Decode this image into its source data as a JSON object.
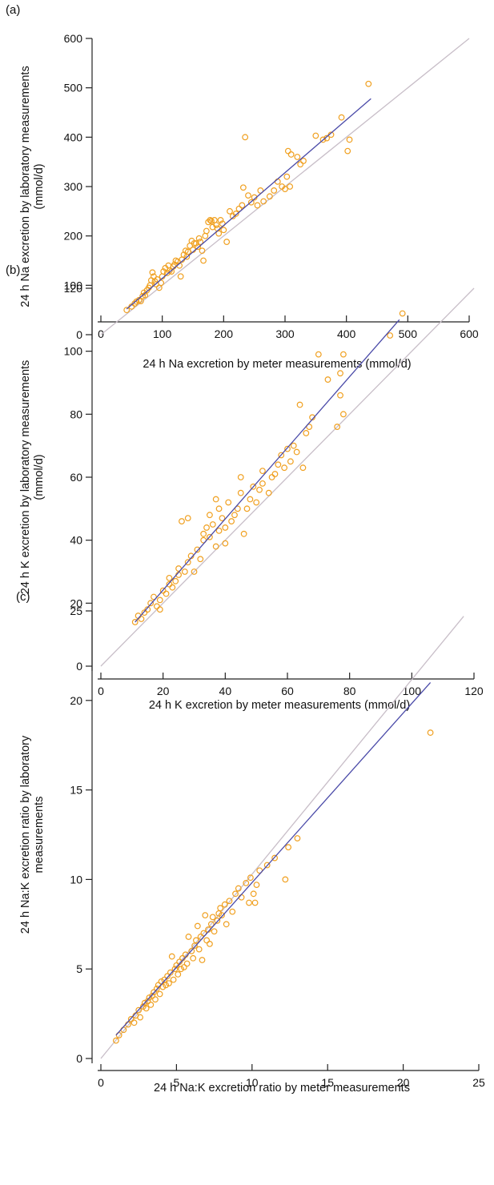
{
  "chart_data": [
    {
      "type": "scatter",
      "panel_label": "(a)",
      "xlabel": "24 h Na excretion by meter measurements (mmol/d)",
      "ylabel": [
        "24 h Na excretion by laboratory measurements",
        "(mmol/d)"
      ],
      "xlim": [
        0,
        600
      ],
      "ylim": [
        0,
        600
      ],
      "xticks": [
        0,
        100,
        200,
        300,
        400,
        500,
        600
      ],
      "yticks": [
        0,
        100,
        200,
        300,
        400,
        500,
        600
      ],
      "grid": false,
      "colors": {
        "points": "#f0a020",
        "fit": "#4a4aa8",
        "identity": "#c8bec8"
      },
      "identity_line": {
        "x": [
          0,
          600
        ],
        "y": [
          0,
          600
        ]
      },
      "fit_line": {
        "x": [
          42,
          440
        ],
        "y": [
          52,
          478
        ]
      },
      "points": [
        [
          42,
          50
        ],
        [
          50,
          57
        ],
        [
          55,
          63
        ],
        [
          58,
          67
        ],
        [
          62,
          70
        ],
        [
          65,
          68
        ],
        [
          68,
          78
        ],
        [
          70,
          85
        ],
        [
          72,
          80
        ],
        [
          75,
          90
        ],
        [
          78,
          95
        ],
        [
          80,
          100
        ],
        [
          82,
          110
        ],
        [
          84,
          126
        ],
        [
          86,
          118
        ],
        [
          88,
          108
        ],
        [
          90,
          102
        ],
        [
          92,
          112
        ],
        [
          95,
          95
        ],
        [
          98,
          105
        ],
        [
          100,
          118
        ],
        [
          102,
          128
        ],
        [
          105,
          135
        ],
        [
          108,
          125
        ],
        [
          110,
          140
        ],
        [
          112,
          130
        ],
        [
          115,
          128
        ],
        [
          118,
          138
        ],
        [
          120,
          142
        ],
        [
          122,
          150
        ],
        [
          125,
          148
        ],
        [
          128,
          140
        ],
        [
          130,
          118
        ],
        [
          132,
          152
        ],
        [
          135,
          162
        ],
        [
          138,
          170
        ],
        [
          140,
          158
        ],
        [
          142,
          168
        ],
        [
          145,
          180
        ],
        [
          148,
          190
        ],
        [
          150,
          172
        ],
        [
          152,
          185
        ],
        [
          155,
          185
        ],
        [
          158,
          178
        ],
        [
          160,
          195
        ],
        [
          162,
          188
        ],
        [
          165,
          170
        ],
        [
          167,
          150
        ],
        [
          170,
          200
        ],
        [
          172,
          210
        ],
        [
          175,
          228
        ],
        [
          178,
          232
        ],
        [
          180,
          230
        ],
        [
          182,
          218
        ],
        [
          185,
          232
        ],
        [
          188,
          222
        ],
        [
          190,
          215
        ],
        [
          192,
          205
        ],
        [
          195,
          232
        ],
        [
          198,
          225
        ],
        [
          200,
          212
        ],
        [
          205,
          188
        ],
        [
          210,
          250
        ],
        [
          215,
          240
        ],
        [
          220,
          245
        ],
        [
          225,
          255
        ],
        [
          230,
          262
        ],
        [
          232,
          298
        ],
        [
          235,
          400
        ],
        [
          240,
          282
        ],
        [
          245,
          268
        ],
        [
          250,
          278
        ],
        [
          255,
          262
        ],
        [
          260,
          292
        ],
        [
          265,
          270
        ],
        [
          275,
          280
        ],
        [
          282,
          292
        ],
        [
          288,
          310
        ],
        [
          295,
          300
        ],
        [
          300,
          295
        ],
        [
          303,
          320
        ],
        [
          305,
          372
        ],
        [
          308,
          300
        ],
        [
          310,
          365
        ],
        [
          320,
          360
        ],
        [
          325,
          345
        ],
        [
          330,
          352
        ],
        [
          350,
          403
        ],
        [
          362,
          395
        ],
        [
          368,
          398
        ],
        [
          375,
          405
        ],
        [
          392,
          440
        ],
        [
          402,
          372
        ],
        [
          405,
          395
        ],
        [
          436,
          508
        ]
      ]
    },
    {
      "type": "scatter",
      "panel_label": "(b)",
      "xlabel": "24 h K excretion by meter measurements (mmol/d)",
      "ylabel": [
        "24 h K excretion by laboratory measurements",
        "(mmol/d)"
      ],
      "xlim": [
        0,
        120
      ],
      "ylim": [
        0,
        120
      ],
      "xticks": [
        0,
        20,
        40,
        60,
        80,
        100,
        120
      ],
      "yticks": [
        0,
        20,
        40,
        60,
        80,
        100,
        120
      ],
      "grid": false,
      "colors": {
        "points": "#f0a020",
        "fit": "#4a4aa8",
        "identity": "#c8bec8"
      },
      "identity_line": {
        "x": [
          0,
          120
        ],
        "y": [
          0,
          120
        ]
      },
      "fit_line": {
        "x": [
          11,
          96
        ],
        "y": [
          14,
          110
        ]
      },
      "points": [
        [
          11,
          14
        ],
        [
          12,
          16
        ],
        [
          13,
          15
        ],
        [
          14,
          17
        ],
        [
          15,
          18
        ],
        [
          16,
          20
        ],
        [
          17,
          22
        ],
        [
          18,
          19
        ],
        [
          19,
          21
        ],
        [
          19,
          18
        ],
        [
          20,
          24
        ],
        [
          21,
          23
        ],
        [
          22,
          26
        ],
        [
          22,
          28
        ],
        [
          23,
          25
        ],
        [
          24,
          27
        ],
        [
          25,
          29
        ],
        [
          25,
          31
        ],
        [
          26,
          46
        ],
        [
          27,
          30
        ],
        [
          28,
          47
        ],
        [
          28,
          33
        ],
        [
          29,
          35
        ],
        [
          30,
          30
        ],
        [
          31,
          37
        ],
        [
          32,
          34
        ],
        [
          33,
          40
        ],
        [
          33,
          42
        ],
        [
          34,
          44
        ],
        [
          35,
          41
        ],
        [
          35,
          48
        ],
        [
          36,
          45
        ],
        [
          37,
          53
        ],
        [
          37,
          38
        ],
        [
          38,
          43
        ],
        [
          38,
          50
        ],
        [
          39,
          47
        ],
        [
          40,
          44
        ],
        [
          40,
          39
        ],
        [
          41,
          52
        ],
        [
          42,
          46
        ],
        [
          43,
          48
        ],
        [
          44,
          50
        ],
        [
          45,
          60
        ],
        [
          45,
          55
        ],
        [
          46,
          42
        ],
        [
          47,
          50
        ],
        [
          48,
          53
        ],
        [
          49,
          57
        ],
        [
          50,
          52
        ],
        [
          51,
          56
        ],
        [
          52,
          58
        ],
        [
          52,
          62
        ],
        [
          54,
          55
        ],
        [
          55,
          60
        ],
        [
          56,
          61
        ],
        [
          57,
          64
        ],
        [
          58,
          67
        ],
        [
          59,
          63
        ],
        [
          60,
          69
        ],
        [
          61,
          65
        ],
        [
          62,
          70
        ],
        [
          63,
          68
        ],
        [
          64,
          83
        ],
        [
          65,
          63
        ],
        [
          66,
          74
        ],
        [
          67,
          76
        ],
        [
          68,
          79
        ],
        [
          70,
          99
        ],
        [
          73,
          91
        ],
        [
          76,
          76
        ],
        [
          77,
          93
        ],
        [
          77,
          86
        ],
        [
          78,
          80
        ],
        [
          78,
          99
        ],
        [
          93,
          105
        ],
        [
          97,
          112
        ]
      ]
    },
    {
      "type": "scatter",
      "panel_label": "(c)",
      "xlabel": "24 h Na:K excretion ratio by meter measurements",
      "ylabel": [
        "24 h Na:K excretion ratio by laboratory",
        "measurements"
      ],
      "xlim": [
        0,
        25
      ],
      "ylim": [
        0,
        25
      ],
      "xticks": [
        0,
        5,
        10,
        15,
        20,
        25
      ],
      "yticks": [
        0,
        5,
        10,
        15,
        20,
        25
      ],
      "grid": false,
      "colors": {
        "points": "#f0a020",
        "fit": "#4a4aa8",
        "identity": "#c8bec8"
      },
      "identity_line": {
        "x": [
          0,
          24
        ],
        "y": [
          0,
          24.7
        ]
      },
      "fit_line": {
        "x": [
          1.0,
          21.8
        ],
        "y": [
          1.3,
          21.0
        ]
      },
      "points": [
        [
          1.0,
          1.0
        ],
        [
          1.2,
          1.3
        ],
        [
          1.5,
          1.6
        ],
        [
          1.8,
          1.9
        ],
        [
          2.0,
          2.2
        ],
        [
          2.2,
          2.0
        ],
        [
          2.3,
          2.4
        ],
        [
          2.5,
          2.7
        ],
        [
          2.6,
          2.3
        ],
        [
          2.8,
          2.9
        ],
        [
          2.9,
          3.1
        ],
        [
          3.0,
          2.8
        ],
        [
          3.1,
          3.2
        ],
        [
          3.2,
          3.4
        ],
        [
          3.3,
          3.0
        ],
        [
          3.4,
          3.5
        ],
        [
          3.5,
          3.7
        ],
        [
          3.6,
          3.3
        ],
        [
          3.7,
          3.9
        ],
        [
          3.8,
          4.1
        ],
        [
          3.9,
          3.6
        ],
        [
          4.0,
          4.3
        ],
        [
          4.1,
          4.0
        ],
        [
          4.2,
          4.4
        ],
        [
          4.3,
          4.1
        ],
        [
          4.4,
          4.6
        ],
        [
          4.5,
          4.2
        ],
        [
          4.6,
          4.8
        ],
        [
          4.7,
          5.7
        ],
        [
          4.8,
          4.4
        ],
        [
          4.9,
          5.0
        ],
        [
          5.0,
          5.2
        ],
        [
          5.1,
          4.7
        ],
        [
          5.2,
          5.4
        ],
        [
          5.3,
          5.0
        ],
        [
          5.4,
          5.6
        ],
        [
          5.5,
          5.1
        ],
        [
          5.6,
          5.8
        ],
        [
          5.7,
          5.3
        ],
        [
          5.8,
          6.8
        ],
        [
          6.0,
          6.0
        ],
        [
          6.1,
          5.6
        ],
        [
          6.2,
          6.3
        ],
        [
          6.3,
          6.6
        ],
        [
          6.4,
          7.4
        ],
        [
          6.5,
          6.1
        ],
        [
          6.6,
          6.8
        ],
        [
          6.7,
          5.5
        ],
        [
          6.8,
          7.0
        ],
        [
          6.9,
          8.0
        ],
        [
          7.0,
          6.6
        ],
        [
          7.1,
          7.2
        ],
        [
          7.2,
          6.4
        ],
        [
          7.3,
          7.5
        ],
        [
          7.4,
          7.9
        ],
        [
          7.5,
          7.1
        ],
        [
          7.7,
          7.7
        ],
        [
          7.8,
          8.1
        ],
        [
          7.9,
          8.4
        ],
        [
          8.0,
          8.0
        ],
        [
          8.2,
          8.6
        ],
        [
          8.3,
          7.5
        ],
        [
          8.5,
          8.8
        ],
        [
          8.7,
          8.2
        ],
        [
          8.9,
          9.2
        ],
        [
          9.1,
          9.5
        ],
        [
          9.3,
          9.0
        ],
        [
          9.6,
          9.8
        ],
        [
          9.8,
          8.7
        ],
        [
          9.9,
          10.1
        ],
        [
          10.1,
          9.2
        ],
        [
          10.2,
          8.7
        ],
        [
          10.3,
          9.7
        ],
        [
          10.5,
          10.5
        ],
        [
          11.0,
          10.8
        ],
        [
          11.5,
          11.2
        ],
        [
          12.2,
          10.0
        ],
        [
          12.4,
          11.8
        ],
        [
          13.0,
          12.3
        ],
        [
          21.8,
          18.2
        ]
      ]
    }
  ]
}
